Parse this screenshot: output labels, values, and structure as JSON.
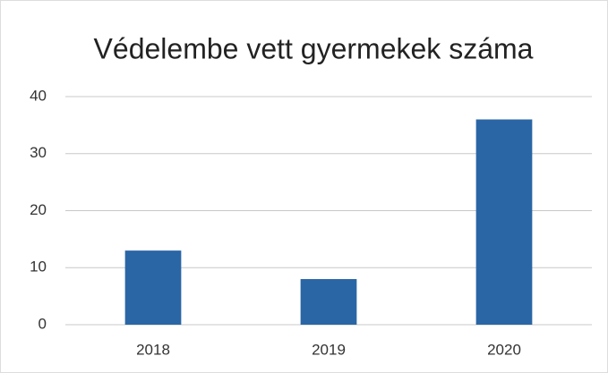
{
  "chart_data": {
    "type": "bar",
    "title": "Védelembe vett gyermekek száma",
    "categories": [
      "2018",
      "2019",
      "2020"
    ],
    "values": [
      13,
      8,
      36
    ],
    "color": "#2a66a6",
    "ylim": [
      0,
      40
    ],
    "yticks": [
      0,
      10,
      20,
      30,
      40
    ],
    "grid": true
  }
}
